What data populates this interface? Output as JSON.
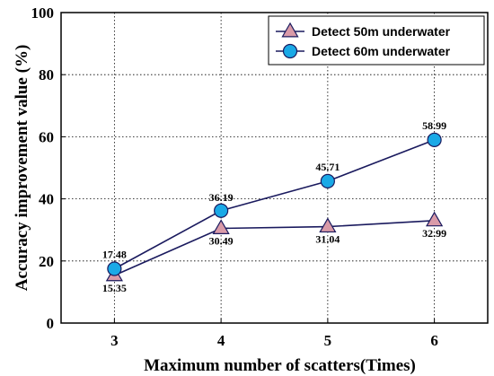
{
  "chart_data": {
    "type": "line",
    "xlabel": "Maximum number of scatters(Times)",
    "ylabel": "Accuracy improvement value (%)",
    "x": [
      3,
      4,
      5,
      6
    ],
    "xlim": [
      2.5,
      6.5
    ],
    "ylim": [
      0,
      100
    ],
    "xticks": [
      "3",
      "4",
      "5",
      "6"
    ],
    "yticks": [
      "0",
      "20",
      "40",
      "60",
      "80",
      "100"
    ],
    "grid": true,
    "legend_position": "top-right",
    "line_color": "#1a1a5e",
    "series": [
      {
        "name": "Detect 50m underwater",
        "marker": "triangle",
        "color": "#d99aa8",
        "values": [
          15.35,
          30.49,
          31.04,
          32.99
        ],
        "labels": [
          "15.35",
          "30.49",
          "31.04",
          "32.99"
        ]
      },
      {
        "name": "Detect 60m underwater",
        "marker": "circle",
        "color": "#1aa9e6",
        "values": [
          17.48,
          36.19,
          45.71,
          58.99
        ],
        "labels": [
          "17.48",
          "36.19",
          "45.71",
          "58.99"
        ]
      }
    ]
  }
}
